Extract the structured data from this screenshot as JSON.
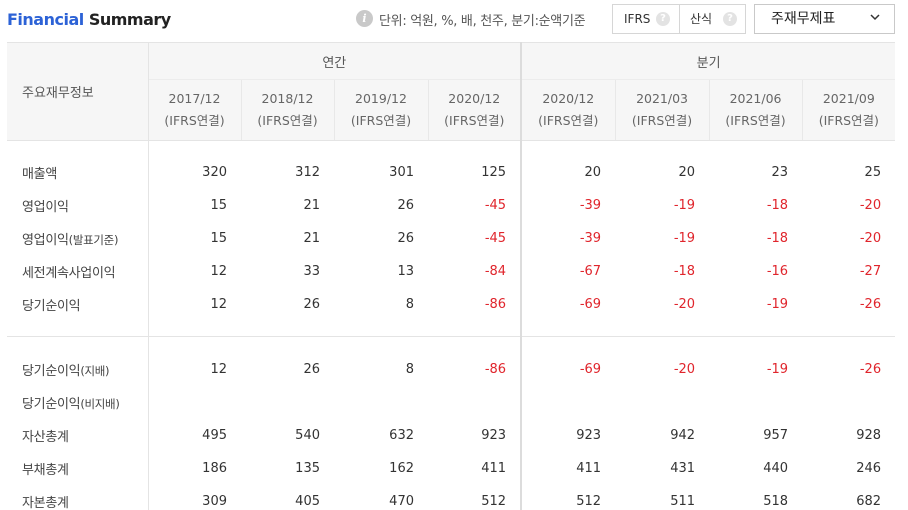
{
  "header": {
    "title_part1": "Financial",
    "title_part2": "Summary",
    "unit_text": "단위: 억원, %, 배, 천주, 분기:순액기준",
    "toggle_ifrs": "IFRS",
    "toggle_standard": "산식",
    "help_mark": "?",
    "info_mark": "i",
    "select_value": "주재무제표"
  },
  "table": {
    "corner_label": "주요재무정보",
    "group_annual": "연간",
    "group_quarter": "분기",
    "periods": [
      {
        "date": "2017/12",
        "basis": "(IFRS연결)"
      },
      {
        "date": "2018/12",
        "basis": "(IFRS연결)"
      },
      {
        "date": "2019/12",
        "basis": "(IFRS연결)"
      },
      {
        "date": "2020/12",
        "basis": "(IFRS연결)"
      },
      {
        "date": "2020/12",
        "basis": "(IFRS연결)"
      },
      {
        "date": "2021/03",
        "basis": "(IFRS연결)"
      },
      {
        "date": "2021/06",
        "basis": "(IFRS연결)"
      },
      {
        "date": "2021/09",
        "basis": "(IFRS연결)"
      }
    ],
    "rows": [
      {
        "label": "매출액",
        "values": [
          "320",
          "312",
          "301",
          "125",
          "20",
          "20",
          "23",
          "25"
        ]
      },
      {
        "label": "영업이익",
        "values": [
          "15",
          "21",
          "26",
          "-45",
          "-39",
          "-19",
          "-18",
          "-20"
        ]
      },
      {
        "label_main": "영업이익",
        "label_sub": "(발표기준)",
        "values": [
          "15",
          "21",
          "26",
          "-45",
          "-39",
          "-19",
          "-18",
          "-20"
        ]
      },
      {
        "label": "세전계속사업이익",
        "values": [
          "12",
          "33",
          "13",
          "-84",
          "-67",
          "-18",
          "-16",
          "-27"
        ]
      },
      {
        "label": "당기순이익",
        "values": [
          "12",
          "26",
          "8",
          "-86",
          "-69",
          "-20",
          "-19",
          "-26"
        ]
      },
      {
        "label_main": "당기순이익",
        "label_sub": "(지배)",
        "values": [
          "12",
          "26",
          "8",
          "-86",
          "-69",
          "-20",
          "-19",
          "-26"
        ]
      },
      {
        "label_main": "당기순이익",
        "label_sub": "(비지배)",
        "values": [
          "",
          "",
          "",
          "",
          "",
          "",
          "",
          ""
        ]
      },
      {
        "label": "자산총계",
        "values": [
          "495",
          "540",
          "632",
          "923",
          "923",
          "942",
          "957",
          "928"
        ]
      },
      {
        "label": "부채총계",
        "values": [
          "186",
          "135",
          "162",
          "411",
          "411",
          "431",
          "440",
          "246"
        ]
      },
      {
        "label": "자본총계",
        "values": [
          "309",
          "405",
          "470",
          "512",
          "512",
          "511",
          "518",
          "682"
        ]
      }
    ]
  },
  "colors": {
    "accent_blue": "#2c62d6",
    "negative_red": "#e0252c"
  }
}
